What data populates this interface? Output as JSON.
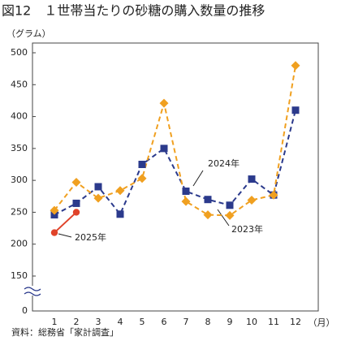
{
  "chart_data": {
    "type": "line",
    "title": "図12　１世帯当たりの砂糖の購入数量の推移",
    "y_label": "（グラム）",
    "x_label": "（月）",
    "source": "資料：総務省「家計調査」",
    "categories": [
      "1",
      "2",
      "3",
      "4",
      "5",
      "6",
      "7",
      "8",
      "9",
      "10",
      "11",
      "12"
    ],
    "series": [
      {
        "name": "2024年",
        "color": "#2b3a8c",
        "marker": "square",
        "dashed": true,
        "values": [
          246,
          264,
          290,
          247,
          325,
          350,
          283,
          270,
          261,
          302,
          277,
          410
        ]
      },
      {
        "name": "2023年",
        "color": "#f0a020",
        "marker": "diamond",
        "dashed": true,
        "values": [
          253,
          297,
          272,
          284,
          303,
          421,
          267,
          246,
          245,
          269,
          277,
          480
        ]
      },
      {
        "name": "2025年",
        "color": "#e0432a",
        "marker": "circle",
        "dashed": false,
        "values": [
          218,
          250,
          null,
          null,
          null,
          null,
          null,
          null,
          null,
          null,
          null,
          null
        ]
      }
    ],
    "ylim": [
      0,
      500
    ],
    "yticks": [
      0,
      150,
      200,
      250,
      300,
      350,
      400,
      450,
      500
    ],
    "y_axis_break": true,
    "grid": false
  }
}
